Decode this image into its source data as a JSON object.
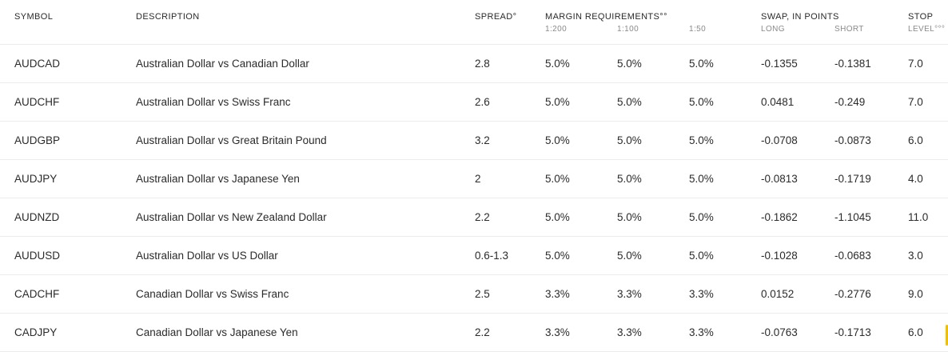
{
  "headers": {
    "symbol": "SYMBOL",
    "description": "DESCRIPTION",
    "spread": "SPREAD°",
    "margin": "MARGIN REQUIREMENTS°°",
    "margin_sub": [
      "1:200",
      "1:100",
      "1:50"
    ],
    "swap": "SWAP, IN POINTS",
    "swap_sub": [
      "LONG",
      "SHORT"
    ],
    "stop": "STOP",
    "stop_sub": "LEVEL°°°"
  },
  "rows": [
    {
      "symbol": "AUDCAD",
      "description": "Australian Dollar vs Canadian Dollar",
      "spread": "2.8",
      "m1": "5.0%",
      "m2": "5.0%",
      "m3": "5.0%",
      "long": "-0.1355",
      "short": "-0.1381",
      "stop": "7.0"
    },
    {
      "symbol": "AUDCHF",
      "description": "Australian Dollar vs Swiss Franc",
      "spread": "2.6",
      "m1": "5.0%",
      "m2": "5.0%",
      "m3": "5.0%",
      "long": "0.0481",
      "short": "-0.249",
      "stop": "7.0"
    },
    {
      "symbol": "AUDGBP",
      "description": "Australian Dollar vs Great Britain Pound",
      "spread": "3.2",
      "m1": "5.0%",
      "m2": "5.0%",
      "m3": "5.0%",
      "long": "-0.0708",
      "short": "-0.0873",
      "stop": "6.0"
    },
    {
      "symbol": "AUDJPY",
      "description": "Australian Dollar vs Japanese Yen",
      "spread": "2",
      "m1": "5.0%",
      "m2": "5.0%",
      "m3": "5.0%",
      "long": "-0.0813",
      "short": "-0.1719",
      "stop": "4.0"
    },
    {
      "symbol": "AUDNZD",
      "description": "Australian Dollar vs New Zealand Dollar",
      "spread": "2.2",
      "m1": "5.0%",
      "m2": "5.0%",
      "m3": "5.0%",
      "long": "-0.1862",
      "short": "-1.1045",
      "stop": "11.0"
    },
    {
      "symbol": "AUDUSD",
      "description": "Australian Dollar vs US Dollar",
      "spread": "0.6-1.3",
      "m1": "5.0%",
      "m2": "5.0%",
      "m3": "5.0%",
      "long": "-0.1028",
      "short": "-0.0683",
      "stop": "3.0"
    },
    {
      "symbol": "CADCHF",
      "description": "Canadian Dollar vs Swiss Franc",
      "spread": "2.5",
      "m1": "3.3%",
      "m2": "3.3%",
      "m3": "3.3%",
      "long": "0.0152",
      "short": "-0.2776",
      "stop": "9.0"
    },
    {
      "symbol": "CADJPY",
      "description": "Canadian Dollar vs Japanese Yen",
      "spread": "2.2",
      "m1": "3.3%",
      "m2": "3.3%",
      "m3": "3.3%",
      "long": "-0.0763",
      "short": "-0.1713",
      "stop": "6.0"
    }
  ],
  "colors": {
    "accent": "#f0c000",
    "divider": "#ececec"
  }
}
